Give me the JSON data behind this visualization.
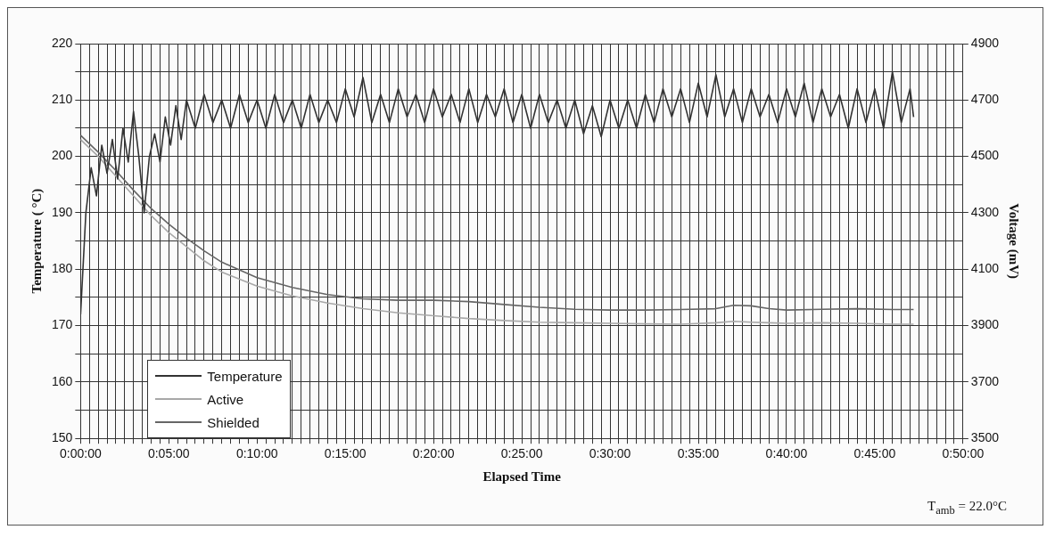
{
  "chart_data": {
    "type": "line",
    "xlabel": "Elapsed Time",
    "ylabel": "Temperature ( °C)",
    "y2label": "Voltage (mV)",
    "annotations": [
      "T$_{amb}$ = 22.0°C"
    ],
    "xlim": [
      0,
      50
    ],
    "xticks": [
      {
        "value": 0,
        "label": "0:00:00"
      },
      {
        "value": 0.5,
        "label": null
      },
      {
        "value": 1,
        "label": null
      },
      {
        "value": 1.5,
        "label": null
      },
      {
        "value": 2,
        "label": null
      },
      {
        "value": 2.5,
        "label": null
      },
      {
        "value": 3,
        "label": null
      },
      {
        "value": 3.5,
        "label": null
      },
      {
        "value": 4,
        "label": null
      },
      {
        "value": 4.5,
        "label": null
      },
      {
        "value": 5,
        "label": "0:05:00"
      },
      {
        "value": 5.5,
        "label": null
      },
      {
        "value": 6,
        "label": null
      },
      {
        "value": 6.5,
        "label": null
      },
      {
        "value": 7,
        "label": null
      },
      {
        "value": 7.5,
        "label": null
      },
      {
        "value": 8,
        "label": null
      },
      {
        "value": 8.5,
        "label": null
      },
      {
        "value": 9,
        "label": null
      },
      {
        "value": 9.5,
        "label": null
      },
      {
        "value": 10,
        "label": "0:10:00"
      },
      {
        "value": 10.5,
        "label": null
      },
      {
        "value": 11,
        "label": null
      },
      {
        "value": 11.5,
        "label": null
      },
      {
        "value": 12,
        "label": null
      },
      {
        "value": 12.5,
        "label": null
      },
      {
        "value": 13,
        "label": null
      },
      {
        "value": 13.5,
        "label": null
      },
      {
        "value": 14,
        "label": null
      },
      {
        "value": 14.5,
        "label": null
      },
      {
        "value": 15,
        "label": "0:15:00"
      },
      {
        "value": 15.5,
        "label": null
      },
      {
        "value": 16,
        "label": null
      },
      {
        "value": 16.5,
        "label": null
      },
      {
        "value": 17,
        "label": null
      },
      {
        "value": 17.5,
        "label": null
      },
      {
        "value": 18,
        "label": null
      },
      {
        "value": 18.5,
        "label": null
      },
      {
        "value": 19,
        "label": null
      },
      {
        "value": 19.5,
        "label": null
      },
      {
        "value": 20,
        "label": "0:20:00"
      },
      {
        "value": 20.5,
        "label": null
      },
      {
        "value": 21,
        "label": null
      },
      {
        "value": 21.5,
        "label": null
      },
      {
        "value": 22,
        "label": null
      },
      {
        "value": 22.5,
        "label": null
      },
      {
        "value": 23,
        "label": null
      },
      {
        "value": 23.5,
        "label": null
      },
      {
        "value": 24,
        "label": null
      },
      {
        "value": 24.5,
        "label": null
      },
      {
        "value": 25,
        "label": "0:25:00"
      },
      {
        "value": 25.5,
        "label": null
      },
      {
        "value": 26,
        "label": null
      },
      {
        "value": 26.5,
        "label": null
      },
      {
        "value": 27,
        "label": null
      },
      {
        "value": 27.5,
        "label": null
      },
      {
        "value": 28,
        "label": null
      },
      {
        "value": 28.5,
        "label": null
      },
      {
        "value": 29,
        "label": null
      },
      {
        "value": 29.5,
        "label": null
      },
      {
        "value": 30,
        "label": "0:30:00"
      },
      {
        "value": 30.5,
        "label": null
      },
      {
        "value": 31,
        "label": null
      },
      {
        "value": 31.5,
        "label": null
      },
      {
        "value": 32,
        "label": null
      },
      {
        "value": 32.5,
        "label": null
      },
      {
        "value": 33,
        "label": null
      },
      {
        "value": 33.5,
        "label": null
      },
      {
        "value": 34,
        "label": null
      },
      {
        "value": 34.5,
        "label": null
      },
      {
        "value": 35,
        "label": "0:35:00"
      },
      {
        "value": 35.5,
        "label": null
      },
      {
        "value": 36,
        "label": null
      },
      {
        "value": 36.5,
        "label": null
      },
      {
        "value": 37,
        "label": null
      },
      {
        "value": 37.5,
        "label": null
      },
      {
        "value": 38,
        "label": null
      },
      {
        "value": 38.5,
        "label": null
      },
      {
        "value": 39,
        "label": null
      },
      {
        "value": 39.5,
        "label": null
      },
      {
        "value": 40,
        "label": "0:40:00"
      },
      {
        "value": 40.5,
        "label": null
      },
      {
        "value": 41,
        "label": null
      },
      {
        "value": 41.5,
        "label": null
      },
      {
        "value": 42,
        "label": null
      },
      {
        "value": 42.5,
        "label": null
      },
      {
        "value": 43,
        "label": null
      },
      {
        "value": 43.5,
        "label": null
      },
      {
        "value": 44,
        "label": null
      },
      {
        "value": 44.5,
        "label": null
      },
      {
        "value": 45,
        "label": "0:45:00"
      },
      {
        "value": 45.5,
        "label": null
      },
      {
        "value": 46,
        "label": null
      },
      {
        "value": 46.5,
        "label": null
      },
      {
        "value": 47,
        "label": null
      },
      {
        "value": 47.5,
        "label": null
      },
      {
        "value": 48,
        "label": null
      },
      {
        "value": 48.5,
        "label": null
      },
      {
        "value": 49,
        "label": null
      },
      {
        "value": 49.5,
        "label": null
      },
      {
        "value": 50,
        "label": "0:50:00"
      }
    ],
    "ylim": [
      150,
      220
    ],
    "yticks": [
      150,
      {
        "value": 155,
        "label": null
      },
      160,
      {
        "value": 165,
        "label": null
      },
      170,
      {
        "value": 175,
        "label": null
      },
      180,
      {
        "value": 185,
        "label": null
      },
      190,
      {
        "value": 195,
        "label": null
      },
      200,
      {
        "value": 205,
        "label": null
      },
      210,
      {
        "value": 215,
        "label": null
      },
      220
    ],
    "y2lim": [
      3500,
      4900
    ],
    "y2ticks": [
      3500,
      3700,
      3900,
      4100,
      4300,
      4500,
      4700,
      4900
    ],
    "grid": true,
    "legend": "bottom left",
    "marker": "none",
    "series": [
      {
        "name": "Temperature",
        "color": "#333333",
        "axis": "y",
        "x": [
          0,
          0.3,
          0.6,
          0.9,
          1.2,
          1.5,
          1.8,
          2.1,
          2.4,
          2.7,
          3,
          3.3,
          3.6,
          3.9,
          4.2,
          4.5,
          4.8,
          5.1,
          5.4,
          5.7,
          6,
          6.5,
          7,
          7.5,
          8,
          8.5,
          9,
          9.5,
          10,
          10.5,
          11,
          11.5,
          12,
          12.5,
          13,
          13.5,
          14,
          14.5,
          15,
          15.5,
          16,
          16.5,
          17,
          17.5,
          18,
          18.5,
          19,
          19.5,
          20,
          20.5,
          21,
          21.5,
          22,
          22.5,
          23,
          23.5,
          24,
          24.5,
          25,
          25.5,
          26,
          26.5,
          27,
          27.5,
          28,
          28.5,
          29,
          29.5,
          30,
          30.5,
          31,
          31.5,
          32,
          32.5,
          33,
          33.5,
          34,
          34.5,
          35,
          35.5,
          36,
          36.5,
          37,
          37.5,
          38,
          38.5,
          39,
          39.5,
          40,
          40.5,
          41,
          41.5,
          42,
          42.5,
          43,
          43.5,
          44,
          44.5,
          45,
          45.5,
          46,
          46.5,
          47,
          47.2
        ],
        "values": [
          172,
          190,
          198,
          193,
          202,
          197,
          203,
          196,
          205,
          199,
          208,
          200,
          190,
          200,
          204,
          199,
          207,
          202,
          209,
          203,
          210,
          205,
          211,
          206,
          210,
          205,
          211,
          206,
          210,
          205,
          211,
          206,
          210,
          205,
          211,
          206,
          210,
          206,
          212,
          207,
          214,
          206,
          211,
          206,
          212,
          207,
          211,
          206,
          212,
          207,
          211,
          206,
          212,
          206,
          211,
          207,
          212,
          206,
          211,
          205,
          211,
          206,
          210,
          205,
          210,
          204,
          209,
          203.5,
          210,
          205,
          210,
          205,
          211,
          206,
          212,
          207,
          212,
          206,
          213,
          207,
          214.5,
          207,
          212,
          206,
          212,
          207,
          211,
          206,
          212,
          207,
          213,
          206,
          212,
          207,
          211,
          205,
          212,
          206,
          212,
          205,
          215,
          206,
          212,
          207
        ]
      },
      {
        "name": "Active",
        "color": "#a8a8a8",
        "axis": "y2",
        "x": [
          0,
          1,
          2,
          3,
          4,
          5,
          6,
          7,
          8,
          10,
          12,
          14,
          16,
          18,
          20,
          22,
          24,
          26,
          28,
          30,
          32,
          34,
          36,
          37,
          38,
          39,
          40,
          42,
          44,
          46,
          47.2
        ],
        "values": [
          4560,
          4500,
          4430,
          4360,
          4290,
          4230,
          4180,
          4130,
          4090,
          4040,
          4005,
          3980,
          3960,
          3945,
          3935,
          3925,
          3918,
          3912,
          3910,
          3908,
          3906,
          3905,
          3910,
          3915,
          3912,
          3910,
          3908,
          3910,
          3908,
          3905,
          3905
        ]
      },
      {
        "name": "Shielded",
        "color": "#666666",
        "axis": "y2",
        "x": [
          0,
          1,
          2,
          3,
          4,
          5,
          6,
          7,
          8,
          10,
          12,
          14,
          16,
          18,
          20,
          22,
          24,
          26,
          28,
          30,
          32,
          34,
          36,
          37,
          38,
          39,
          40,
          42,
          44,
          46,
          47.2
        ],
        "values": [
          4575,
          4515,
          4450,
          4380,
          4315,
          4260,
          4210,
          4165,
          4125,
          4070,
          4035,
          4010,
          3995,
          3990,
          3990,
          3985,
          3975,
          3965,
          3958,
          3955,
          3955,
          3957,
          3960,
          3972,
          3970,
          3960,
          3955,
          3958,
          3960,
          3957,
          3957
        ]
      }
    ]
  }
}
